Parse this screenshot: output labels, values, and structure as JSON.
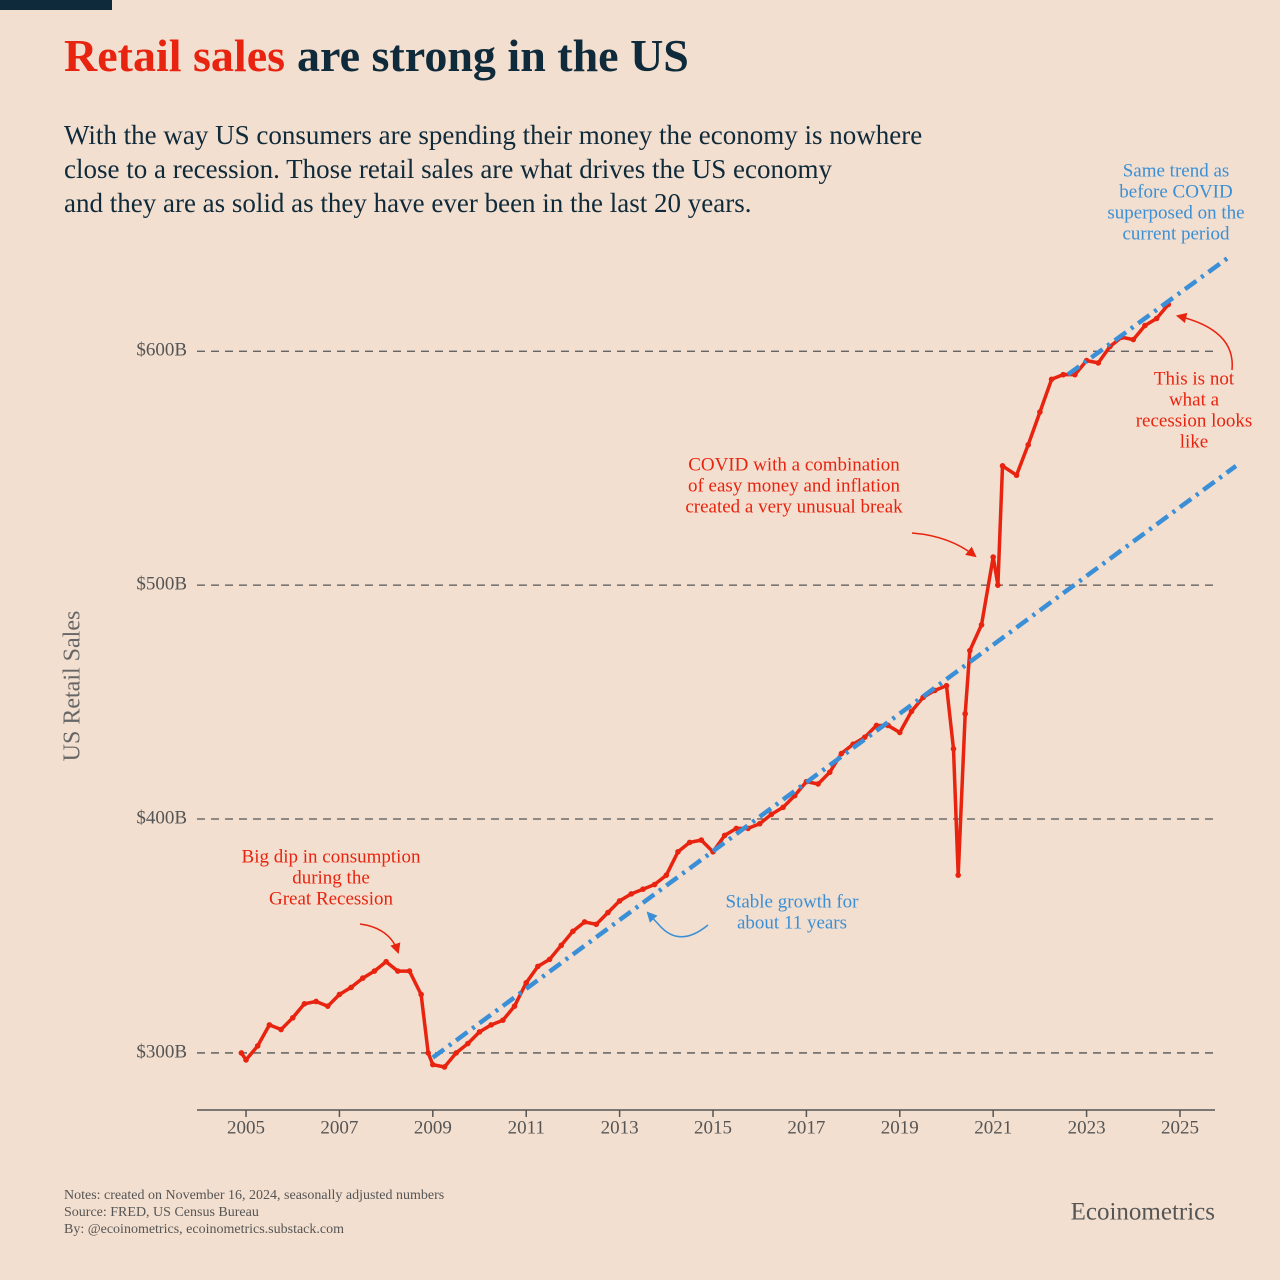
{
  "chart_data": {
    "type": "line",
    "title_highlight": "Retail sales",
    "title_rest": "are strong in the US",
    "subtitle": [
      "With the way US consumers are spending their money the economy is nowhere",
      "close to a recession. Those retail sales are what drives the US economy",
      "and they are as solid as they have ever been in the last 20 years."
    ],
    "ylabel": "US Retail Sales",
    "xlim": [
      2003.95,
      2025.75
    ],
    "xticks": [
      2005,
      2007,
      2009,
      2011,
      2013,
      2015,
      2017,
      2019,
      2021,
      2023,
      2025
    ],
    "ylim": [
      275.6,
      645
    ],
    "yticks": [
      {
        "value": 300,
        "label": "$300B"
      },
      {
        "value": 400,
        "label": "$400B"
      },
      {
        "value": 500,
        "label": "$500B"
      },
      {
        "value": 600,
        "label": "$600B"
      }
    ],
    "grid": true,
    "series": [
      {
        "color": "#e8230f",
        "x": [
          2004.9,
          2005.0,
          2005.25,
          2005.5,
          2005.75,
          2006.0,
          2006.25,
          2006.5,
          2006.75,
          2007.0,
          2007.25,
          2007.5,
          2007.75,
          2008.0,
          2008.25,
          2008.5,
          2008.75,
          2008.9,
          2009.0,
          2009.25,
          2009.5,
          2009.75,
          2010.0,
          2010.25,
          2010.5,
          2010.75,
          2011.0,
          2011.25,
          2011.5,
          2011.75,
          2012.0,
          2012.25,
          2012.5,
          2012.75,
          2013.0,
          2013.25,
          2013.5,
          2013.75,
          2014.0,
          2014.25,
          2014.5,
          2014.75,
          2015.0,
          2015.25,
          2015.5,
          2015.75,
          2016.0,
          2016.25,
          2016.5,
          2016.75,
          2017.0,
          2017.25,
          2017.5,
          2017.75,
          2018.0,
          2018.25,
          2018.5,
          2018.75,
          2019.0,
          2019.25,
          2019.5,
          2019.75,
          2020.0,
          2020.15,
          2020.25,
          2020.4,
          2020.5,
          2020.75,
          2021.0,
          2021.1,
          2021.2,
          2021.5,
          2021.75,
          2022.0,
          2022.25,
          2022.5,
          2022.75,
          2023.0,
          2023.25,
          2023.5,
          2023.75,
          2024.0,
          2024.25,
          2024.5,
          2024.75
        ],
        "values": [
          300,
          297,
          303,
          312,
          310,
          315,
          321,
          322,
          320,
          325,
          328,
          332,
          335,
          339,
          335,
          335,
          325,
          300,
          295,
          294,
          300,
          304,
          309,
          312,
          314,
          320,
          330,
          337,
          340,
          346,
          352,
          356,
          355,
          360,
          365,
          368,
          370,
          372,
          376,
          386,
          390,
          391,
          386,
          393,
          396,
          396,
          398,
          402,
          405,
          410,
          416,
          415,
          420,
          428,
          432,
          435,
          440,
          440,
          437,
          446,
          452,
          455,
          457,
          430,
          376,
          445,
          472,
          483,
          512,
          500,
          551,
          547,
          560,
          574,
          588,
          590,
          590,
          596,
          595,
          602,
          606,
          605,
          611,
          614,
          620
        ]
      },
      {
        "color": "#3a8fd6",
        "x": [
          2009.0,
          2026.2
        ],
        "values": [
          298,
          551
        ]
      },
      {
        "color": "#3a8fd6",
        "x": [
          2022.6,
          2026.1
        ],
        "values": [
          590,
          641
        ]
      }
    ],
    "annotations": [
      {
        "lines": [
          "Big dip in consumption",
          "during the",
          "Great Recession"
        ],
        "color": "#e8230f"
      },
      {
        "lines": [
          "Stable growth for",
          "about 11 years"
        ],
        "color": "#3a8fd6"
      },
      {
        "lines": [
          "COVID with a combination",
          "of easy money and inflation",
          "created a very unusual break"
        ],
        "color": "#e8230f"
      },
      {
        "lines": [
          "Same trend as",
          "before COVID",
          "superposed on the",
          "current period"
        ],
        "color": "#3a8fd6"
      },
      {
        "lines": [
          "This is not",
          "what a",
          "recession looks",
          "like"
        ],
        "color": "#e8230f"
      }
    ],
    "notes": [
      "Notes: created on November 16, 2024, seasonally adjusted numbers",
      "Source: FRED, US Census Bureau",
      "By: @ecoinometrics, ecoinometrics.substack.com"
    ],
    "brand": "Ecoinometrics"
  }
}
